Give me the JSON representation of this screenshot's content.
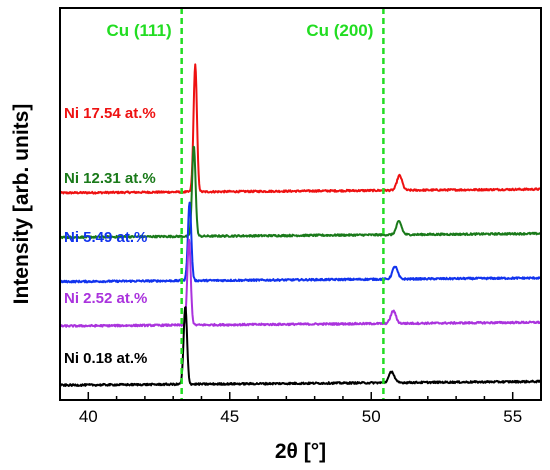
{
  "chart_data": {
    "type": "line",
    "xlabel": "2θ [°]",
    "ylabel": "Intensity [arb. units]",
    "xlim": [
      39,
      56
    ],
    "x_ticks": [
      40,
      45,
      50,
      55
    ],
    "y_ticks_visible": false,
    "y_tick_labels_visible": false,
    "grid": false,
    "legend": "none",
    "reference_lines": [
      {
        "label": "Cu (111)",
        "x": 43.3,
        "color": "#22dd22",
        "style": "dashed"
      },
      {
        "label": "Cu (200)",
        "x": 50.43,
        "color": "#22dd22",
        "style": "dashed"
      }
    ],
    "series": [
      {
        "label": "Ni 17.54 at.%",
        "color": "#ee1111",
        "baseline": 2.8,
        "peak1_x": 43.78,
        "peak1_h": 1.72,
        "peak2_x": 51.0,
        "peak2_h": 0.2
      },
      {
        "label": "Ni 12.31 at.%",
        "color": "#1a7a1a",
        "baseline": 2.2,
        "peak1_x": 43.73,
        "peak1_h": 1.23,
        "peak2_x": 50.98,
        "peak2_h": 0.18
      },
      {
        "label": "Ni 5.49 at.%",
        "color": "#1133ee",
        "baseline": 1.6,
        "peak1_x": 43.58,
        "peak1_h": 1.05,
        "peak2_x": 50.84,
        "peak2_h": 0.17
      },
      {
        "label": "Ni 2.52 at.%",
        "color": "#aa33dd",
        "baseline": 1.0,
        "peak1_x": 43.56,
        "peak1_h": 1.15,
        "peak2_x": 50.78,
        "peak2_h": 0.17
      },
      {
        "label": "Ni 0.18 at.%",
        "color": "#000000",
        "baseline": 0.2,
        "peak1_x": 43.43,
        "peak1_h": 1.05,
        "peak2_x": 50.72,
        "peak2_h": 0.15
      }
    ]
  }
}
